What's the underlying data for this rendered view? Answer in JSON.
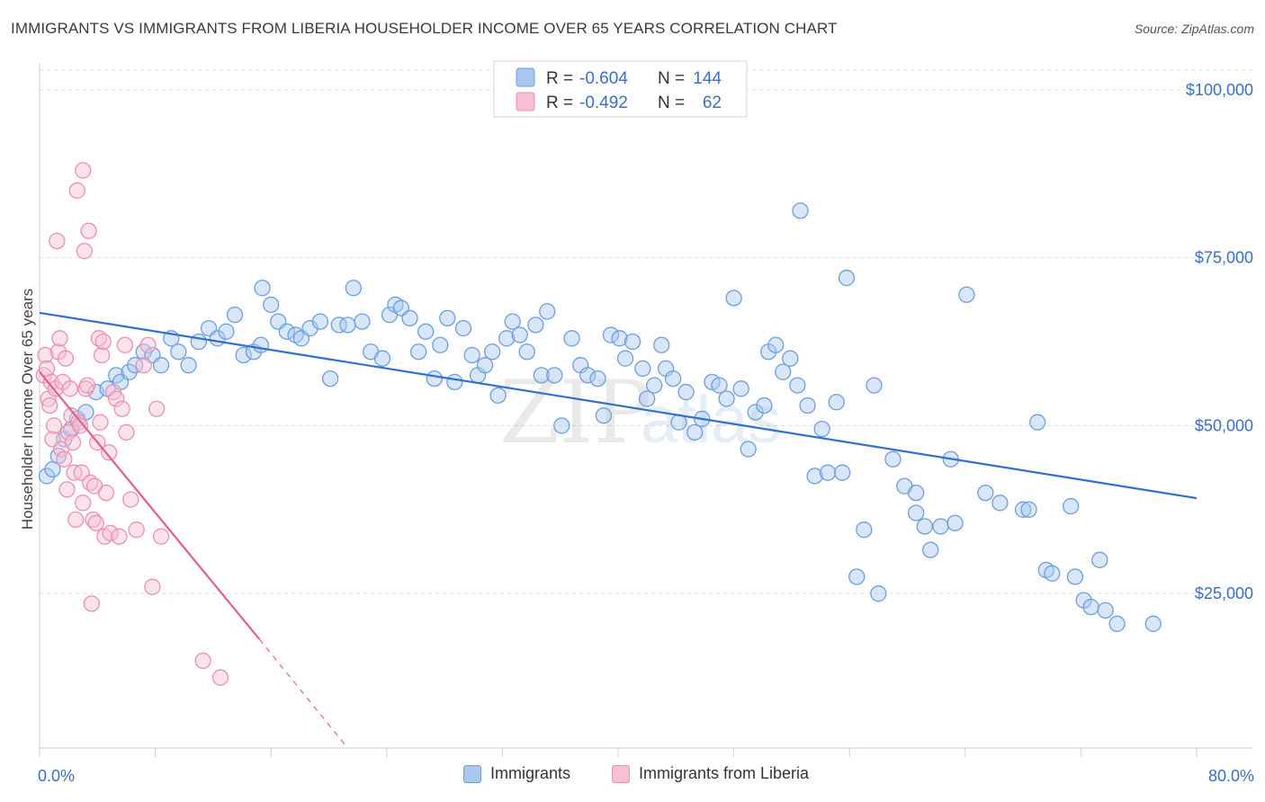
{
  "title": "IMMIGRANTS VS IMMIGRANTS FROM LIBERIA HOUSEHOLDER INCOME OVER 65 YEARS CORRELATION CHART",
  "source": "Source: ZipAtlas.com",
  "watermark": {
    "zip": "ZIP",
    "atlas": "atlas"
  },
  "legend_top": [
    {
      "r_label": "R =",
      "r_value": "-0.604",
      "n_label": "N =",
      "n_value": "144",
      "color": "#a9c8f0",
      "stroke": "#6d9ee0"
    },
    {
      "r_label": "R =",
      "r_value": "-0.492",
      "n_label": "N =",
      "n_value": "62",
      "color": "#f7bfd2",
      "stroke": "#ee8fb0"
    }
  ],
  "legend_bottom": [
    {
      "label": "Immigrants",
      "color": "#a9c8f0",
      "stroke": "#6d9ee0"
    },
    {
      "label": "Immigrants from Liberia",
      "color": "#f7bfd2",
      "stroke": "#ee8fb0"
    }
  ],
  "chart_data": {
    "type": "scatter",
    "title": "IMMIGRANTS VS IMMIGRANTS FROM LIBERIA HOUSEHOLDER INCOME OVER 65 YEARS CORRELATION CHART",
    "xlabel": "",
    "ylabel": "Householder Income Over 65 years",
    "xlim": [
      0,
      80
    ],
    "ylim": [
      2000,
      104000
    ],
    "x_tick_labels": [
      "0.0%",
      "80.0%"
    ],
    "y_ticks": [
      25000,
      50000,
      75000,
      100000
    ],
    "y_tick_labels": [
      "$25,000",
      "$50,000",
      "$75,000",
      "$100,000"
    ],
    "grid": true,
    "legend_position": "top-center",
    "series": [
      {
        "name": "Immigrants",
        "color": "#6d9ee0",
        "fill": "#a9c8f0",
        "trend": {
          "x": [
            0,
            80
          ],
          "y": [
            66800,
            39200
          ],
          "color": "#2f6fd0"
        },
        "points": [
          [
            0.5,
            42500
          ],
          [
            0.9,
            43500
          ],
          [
            1.3,
            45500
          ],
          [
            1.7,
            48000
          ],
          [
            2.2,
            49500
          ],
          [
            2.6,
            51000
          ],
          [
            3.2,
            52000
          ],
          [
            3.9,
            55000
          ],
          [
            4.7,
            55500
          ],
          [
            5.3,
            57500
          ],
          [
            5.6,
            56500
          ],
          [
            6.2,
            58000
          ],
          [
            6.6,
            59000
          ],
          [
            7.2,
            61000
          ],
          [
            7.8,
            60500
          ],
          [
            8.4,
            59000
          ],
          [
            9.1,
            63000
          ],
          [
            9.6,
            61000
          ],
          [
            10.3,
            59000
          ],
          [
            11.0,
            62500
          ],
          [
            11.7,
            64500
          ],
          [
            12.3,
            63000
          ],
          [
            12.9,
            64000
          ],
          [
            13.5,
            66500
          ],
          [
            14.1,
            60500
          ],
          [
            14.8,
            61000
          ],
          [
            15.3,
            62000
          ],
          [
            15.4,
            70500
          ],
          [
            16.0,
            68000
          ],
          [
            16.5,
            65500
          ],
          [
            17.1,
            64000
          ],
          [
            17.7,
            63500
          ],
          [
            18.1,
            63000
          ],
          [
            18.7,
            64500
          ],
          [
            19.4,
            65500
          ],
          [
            20.1,
            57000
          ],
          [
            20.7,
            65000
          ],
          [
            21.3,
            65000
          ],
          [
            21.7,
            70500
          ],
          [
            22.3,
            65500
          ],
          [
            22.9,
            61000
          ],
          [
            23.7,
            60000
          ],
          [
            24.2,
            66500
          ],
          [
            24.6,
            68000
          ],
          [
            25.0,
            67500
          ],
          [
            25.6,
            66000
          ],
          [
            26.2,
            61000
          ],
          [
            26.7,
            64000
          ],
          [
            27.3,
            57000
          ],
          [
            27.7,
            62000
          ],
          [
            28.2,
            66000
          ],
          [
            28.7,
            56500
          ],
          [
            29.3,
            64500
          ],
          [
            29.9,
            60500
          ],
          [
            30.3,
            57500
          ],
          [
            30.8,
            59000
          ],
          [
            31.3,
            61000
          ],
          [
            31.7,
            54500
          ],
          [
            32.3,
            63000
          ],
          [
            32.7,
            65500
          ],
          [
            33.2,
            63500
          ],
          [
            33.7,
            61000
          ],
          [
            34.3,
            65000
          ],
          [
            34.7,
            57500
          ],
          [
            35.1,
            67000
          ],
          [
            35.6,
            57500
          ],
          [
            36.1,
            50000
          ],
          [
            36.8,
            63000
          ],
          [
            37.4,
            59000
          ],
          [
            37.9,
            57500
          ],
          [
            38.6,
            57000
          ],
          [
            39.0,
            51500
          ],
          [
            39.5,
            63500
          ],
          [
            40.1,
            63000
          ],
          [
            40.5,
            60000
          ],
          [
            41.0,
            62500
          ],
          [
            41.7,
            58500
          ],
          [
            42.0,
            54000
          ],
          [
            42.5,
            56000
          ],
          [
            43.0,
            62000
          ],
          [
            43.3,
            58500
          ],
          [
            43.8,
            57000
          ],
          [
            44.2,
            50500
          ],
          [
            44.7,
            55000
          ],
          [
            45.3,
            49000
          ],
          [
            45.8,
            51000
          ],
          [
            46.5,
            56500
          ],
          [
            47.0,
            56000
          ],
          [
            47.5,
            54000
          ],
          [
            48.0,
            69000
          ],
          [
            48.5,
            55500
          ],
          [
            49.0,
            46500
          ],
          [
            49.5,
            52000
          ],
          [
            50.1,
            53000
          ],
          [
            50.4,
            61000
          ],
          [
            50.9,
            62000
          ],
          [
            51.4,
            58000
          ],
          [
            51.9,
            60000
          ],
          [
            52.4,
            56000
          ],
          [
            52.6,
            82000
          ],
          [
            53.1,
            53000
          ],
          [
            53.6,
            42500
          ],
          [
            54.1,
            49500
          ],
          [
            54.5,
            43000
          ],
          [
            55.1,
            53500
          ],
          [
            55.5,
            43000
          ],
          [
            55.8,
            72000
          ],
          [
            56.5,
            27500
          ],
          [
            57.0,
            34500
          ],
          [
            57.7,
            56000
          ],
          [
            58.0,
            25000
          ],
          [
            59.0,
            45000
          ],
          [
            59.8,
            41000
          ],
          [
            60.6,
            37000
          ],
          [
            60.6,
            40000
          ],
          [
            61.2,
            35000
          ],
          [
            61.6,
            31500
          ],
          [
            62.3,
            35000
          ],
          [
            63.0,
            45000
          ],
          [
            63.3,
            35500
          ],
          [
            64.1,
            69500
          ],
          [
            65.4,
            40000
          ],
          [
            66.4,
            38500
          ],
          [
            68.0,
            37500
          ],
          [
            68.4,
            37500
          ],
          [
            69.0,
            50500
          ],
          [
            69.6,
            28500
          ],
          [
            70.0,
            28000
          ],
          [
            71.3,
            38000
          ],
          [
            71.6,
            27500
          ],
          [
            72.2,
            24000
          ],
          [
            72.7,
            23000
          ],
          [
            73.3,
            30000
          ],
          [
            73.7,
            22500
          ],
          [
            74.5,
            20500
          ],
          [
            77.0,
            20500
          ]
        ]
      },
      {
        "name": "Immigrants from Liberia",
        "color": "#ee8fb0",
        "fill": "#f7bfd2",
        "trend": {
          "x": [
            0,
            15.2
          ],
          "y": [
            58000,
            18200
          ],
          "color": "#e0608d",
          "dashed_x": [
            15.2,
            21.3
          ],
          "dashed_y": [
            18200,
            2000
          ]
        },
        "points": [
          [
            0.3,
            57500
          ],
          [
            0.4,
            60500
          ],
          [
            0.5,
            58500
          ],
          [
            0.6,
            54000
          ],
          [
            0.7,
            53000
          ],
          [
            0.8,
            56500
          ],
          [
            0.9,
            48000
          ],
          [
            1.0,
            50000
          ],
          [
            1.1,
            55500
          ],
          [
            1.2,
            77500
          ],
          [
            1.3,
            61000
          ],
          [
            1.4,
            63000
          ],
          [
            1.5,
            46500
          ],
          [
            1.6,
            56500
          ],
          [
            1.7,
            45000
          ],
          [
            1.8,
            60000
          ],
          [
            1.9,
            40500
          ],
          [
            2.0,
            49000
          ],
          [
            2.1,
            55500
          ],
          [
            2.2,
            51500
          ],
          [
            2.3,
            47500
          ],
          [
            2.4,
            43000
          ],
          [
            2.5,
            36000
          ],
          [
            2.6,
            85000
          ],
          [
            2.7,
            50500
          ],
          [
            2.8,
            50000
          ],
          [
            2.9,
            43000
          ],
          [
            3.0,
            38500
          ],
          [
            3.0,
            88000
          ],
          [
            3.1,
            76000
          ],
          [
            3.2,
            55500
          ],
          [
            3.3,
            56000
          ],
          [
            3.4,
            79000
          ],
          [
            3.5,
            41500
          ],
          [
            3.6,
            23500
          ],
          [
            3.7,
            36000
          ],
          [
            3.8,
            41000
          ],
          [
            3.9,
            35500
          ],
          [
            4.0,
            47500
          ],
          [
            4.1,
            63000
          ],
          [
            4.2,
            50500
          ],
          [
            4.3,
            60500
          ],
          [
            4.4,
            62500
          ],
          [
            4.5,
            33500
          ],
          [
            4.6,
            40000
          ],
          [
            4.8,
            46000
          ],
          [
            4.9,
            34000
          ],
          [
            5.1,
            55000
          ],
          [
            5.3,
            54000
          ],
          [
            5.5,
            33500
          ],
          [
            5.7,
            52500
          ],
          [
            5.9,
            62000
          ],
          [
            6.3,
            39000
          ],
          [
            6.7,
            34500
          ],
          [
            7.2,
            59000
          ],
          [
            7.5,
            62000
          ],
          [
            7.8,
            26000
          ],
          [
            8.1,
            52500
          ],
          [
            8.4,
            33500
          ],
          [
            11.3,
            15000
          ],
          [
            12.5,
            12500
          ],
          [
            6.0,
            49000
          ]
        ]
      }
    ]
  }
}
